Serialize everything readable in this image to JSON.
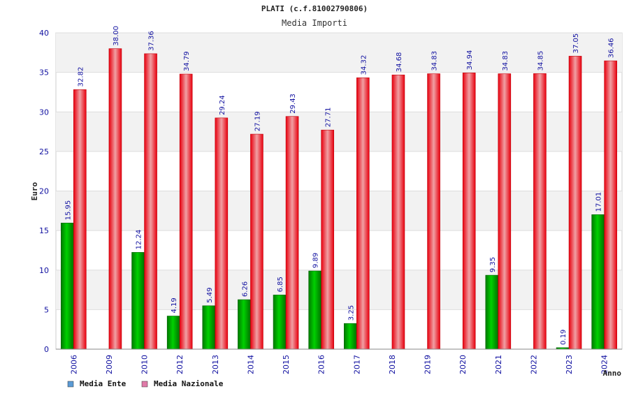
{
  "chart_data": {
    "type": "bar",
    "title": "PLATI (c.f.81002790806)",
    "subtitle": "Media Importi",
    "xlabel": "Anno",
    "ylabel": "Euro",
    "ylim": [
      0,
      40
    ],
    "yticks": [
      0,
      5,
      10,
      15,
      20,
      25,
      30,
      35,
      40
    ],
    "grid": true,
    "legend_position": "bottom-left",
    "categories": [
      "2006",
      "2009",
      "2010",
      "2012",
      "2013",
      "2014",
      "2015",
      "2016",
      "2017",
      "2018",
      "2019",
      "2020",
      "2021",
      "2022",
      "2023",
      "2024"
    ],
    "series": [
      {
        "name": "Media Ente",
        "color": "#00a000",
        "legend_color": "#5b9bd5",
        "values": [
          15.95,
          null,
          12.24,
          4.19,
          5.49,
          6.26,
          6.85,
          9.89,
          3.25,
          null,
          null,
          null,
          9.35,
          null,
          0.19,
          17.01
        ],
        "labels": [
          "15.95",
          "",
          "12.24",
          "4.19",
          "5.49",
          "6.26",
          "6.85",
          "9.89",
          "3.25",
          "",
          "",
          "",
          "9.35",
          "",
          "0.19",
          "17.01"
        ]
      },
      {
        "name": "Media Nazionale",
        "color": "#e00010",
        "legend_color": "#e07aa8",
        "values": [
          32.82,
          38.0,
          37.36,
          34.79,
          29.24,
          27.19,
          29.43,
          27.71,
          34.32,
          34.68,
          34.83,
          34.94,
          34.83,
          34.85,
          37.05,
          36.46
        ],
        "labels": [
          "32.82",
          "38.00",
          "37.36",
          "34.79",
          "29.24",
          "27.19",
          "29.43",
          "27.71",
          "34.32",
          "34.68",
          "34.83",
          "34.94",
          "34.83",
          "34.85",
          "37.05",
          "36.46"
        ]
      }
    ]
  }
}
